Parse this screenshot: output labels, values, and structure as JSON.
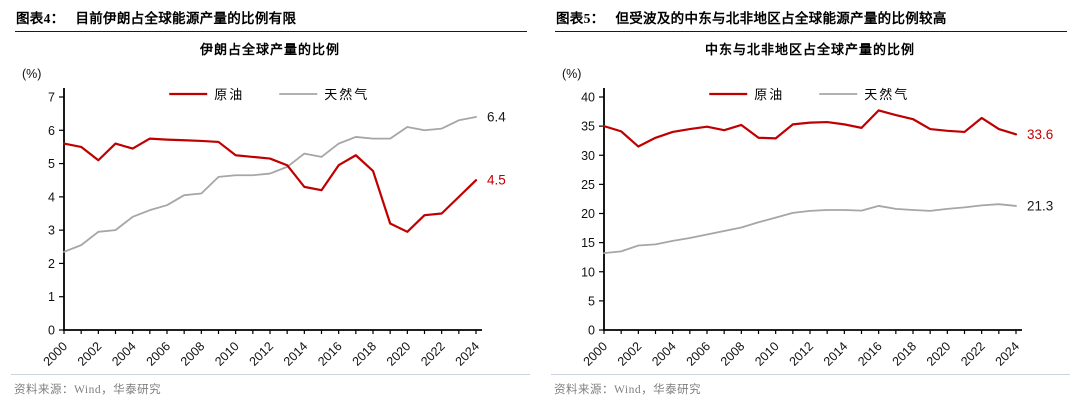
{
  "colors": {
    "red": "#C00000",
    "gray": "#A6A6A6",
    "text_black": "#1a1a1a",
    "source_gray": "#7f7f7f",
    "rule_dark": "#1a1a1a",
    "rule_light": "#ccd5df"
  },
  "panels": [
    {
      "header_tag": "图表4：",
      "header_title": "目前伊朗占全球能源产量的比例有限",
      "source": "资料来源：Wind，华泰研究"
    },
    {
      "header_tag": "图表5：",
      "header_title": "但受波及的中东与北非地区占全球能源产量的比例较高",
      "source": "资料来源：Wind，华泰研究"
    }
  ],
  "chart_data": [
    {
      "type": "line",
      "title": "伊朗占全球产量的比例",
      "unit_label": "(%)",
      "grid": false,
      "legend_position": "top-center",
      "ylim": [
        0,
        7
      ],
      "ytick_step": 1,
      "x_label_every": 2,
      "x": [
        2000,
        2001,
        2002,
        2003,
        2004,
        2005,
        2006,
        2007,
        2008,
        2009,
        2010,
        2011,
        2012,
        2013,
        2014,
        2015,
        2016,
        2017,
        2018,
        2019,
        2020,
        2021,
        2022,
        2023,
        2024
      ],
      "series": [
        {
          "name": "原油",
          "color": "#C00000",
          "width": 2.2,
          "values": [
            5.6,
            5.5,
            5.1,
            5.6,
            5.45,
            5.75,
            5.72,
            5.7,
            5.68,
            5.65,
            5.25,
            5.2,
            5.15,
            4.95,
            4.3,
            4.2,
            4.95,
            5.25,
            4.78,
            3.2,
            2.95,
            3.45,
            3.5,
            4.0,
            4.5
          ],
          "end_label": "4.5",
          "end_label_color": "#C00000"
        },
        {
          "name": "天然气",
          "color": "#A6A6A6",
          "width": 1.8,
          "values": [
            2.35,
            2.55,
            2.95,
            3.0,
            3.4,
            3.6,
            3.75,
            4.05,
            4.1,
            4.6,
            4.65,
            4.65,
            4.7,
            4.9,
            5.3,
            5.2,
            5.6,
            5.8,
            5.75,
            5.75,
            6.1,
            6.0,
            6.05,
            6.3,
            6.4
          ],
          "end_label": "6.4",
          "end_label_color": "#1a1a1a"
        }
      ]
    },
    {
      "type": "line",
      "title": "中东与北非地区占全球产量的比例",
      "unit_label": "(%)",
      "grid": false,
      "legend_position": "top-center",
      "ylim": [
        0,
        40
      ],
      "ytick_step": 5,
      "x_label_every": 2,
      "x": [
        2000,
        2001,
        2002,
        2003,
        2004,
        2005,
        2006,
        2007,
        2008,
        2009,
        2010,
        2011,
        2012,
        2013,
        2014,
        2015,
        2016,
        2017,
        2018,
        2019,
        2020,
        2021,
        2022,
        2023,
        2024
      ],
      "series": [
        {
          "name": "原油",
          "color": "#C00000",
          "width": 2.2,
          "values": [
            35.0,
            34.1,
            31.5,
            33.0,
            34.0,
            34.5,
            34.9,
            34.3,
            35.2,
            33.0,
            32.9,
            35.3,
            35.6,
            35.7,
            35.3,
            34.7,
            37.7,
            36.9,
            36.2,
            34.5,
            34.2,
            34.0,
            36.4,
            34.5,
            33.6
          ],
          "end_label": "33.6",
          "end_label_color": "#C00000"
        },
        {
          "name": "天然气",
          "color": "#A6A6A6",
          "width": 1.8,
          "values": [
            13.2,
            13.5,
            14.5,
            14.7,
            15.3,
            15.8,
            16.4,
            17.0,
            17.6,
            18.5,
            19.3,
            20.1,
            20.45,
            20.6,
            20.6,
            20.5,
            21.3,
            20.8,
            20.6,
            20.45,
            20.8,
            21.05,
            21.4,
            21.6,
            21.3
          ],
          "end_label": "21.3",
          "end_label_color": "#1a1a1a"
        }
      ]
    }
  ]
}
